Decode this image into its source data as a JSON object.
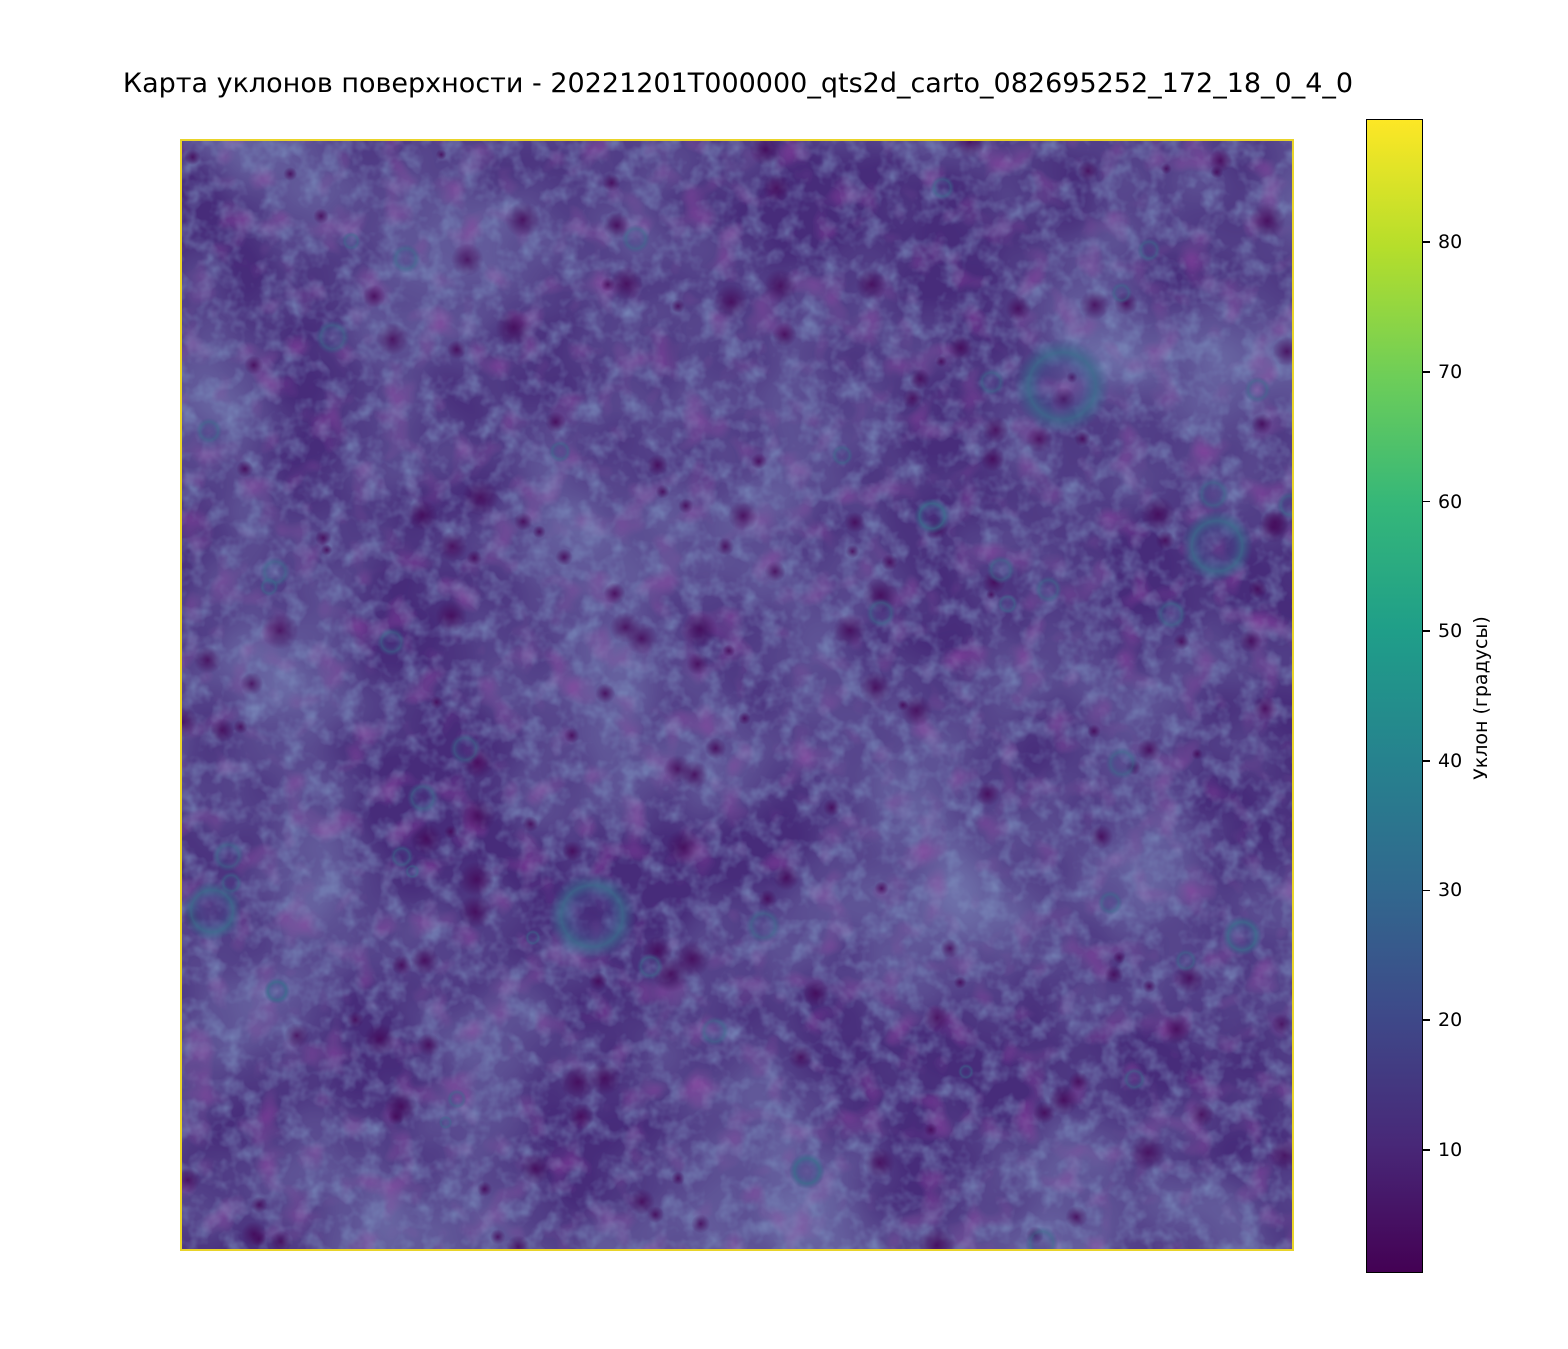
{
  "chart_data": {
    "type": "heatmap",
    "title": "Карта уклонов поверхности - 20221201T000000_qts2d_carto_082695252_172_18_0_4_0",
    "xlabel": "",
    "ylabel": "",
    "axes_visible": false,
    "colormap": "viridis",
    "colorbar": {
      "label": "Уклон (градусы)",
      "vmin": 0.5,
      "vmax": 89.5,
      "ticks": [
        10,
        20,
        30,
        40,
        50,
        60,
        70,
        80
      ],
      "tick_labels": [
        "10",
        "20",
        "30",
        "40",
        "50",
        "60",
        "70",
        "80"
      ],
      "stops": [
        "#440154",
        "#482878",
        "#3e4989",
        "#31688e",
        "#26828e",
        "#1f9e89",
        "#35b779",
        "#6ece58",
        "#b5de2b",
        "#fde725"
      ]
    },
    "value_summary": {
      "typical_range": [
        5,
        25
      ],
      "dominant_color": "#472c7a"
    },
    "frame_color": "#e9d42a"
  }
}
